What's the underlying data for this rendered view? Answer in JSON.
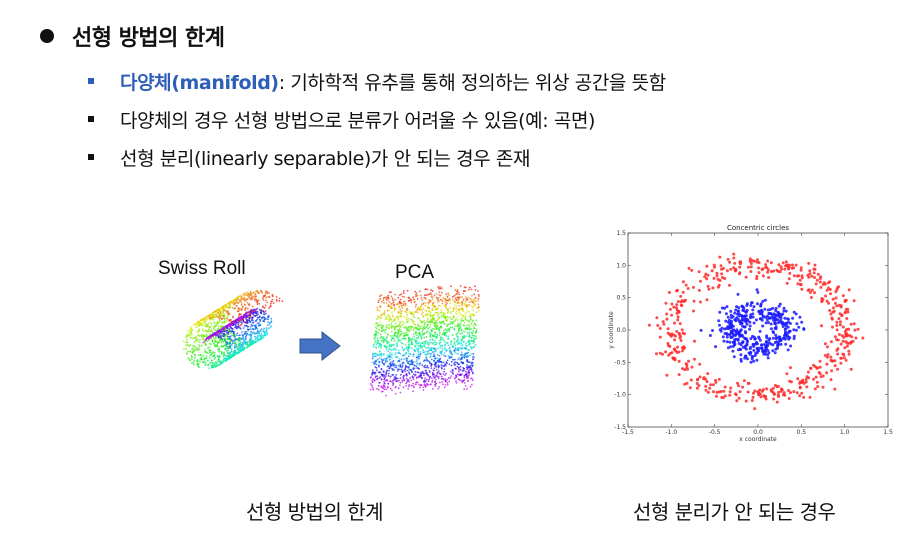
{
  "heading": "선형 방법의 한계",
  "bullets": [
    {
      "term": "다양체(manifold)",
      "text": ": 기하학적 유추를 통해 정의하는 위상 공간을 뜻함"
    },
    {
      "text": "다양체의 경우 선형 방법으로 분류가 어려울 수 있음(예: 곡면)"
    },
    {
      "text": "선형 분리(linearly separable)가 안 되는 경우 존재"
    }
  ],
  "left_figure": {
    "swiss_roll_label": "Swiss Roll",
    "pca_label": "PCA",
    "caption": "선형 방법의 한계"
  },
  "right_figure": {
    "caption": "선형 분리가 안 되는 경우"
  },
  "chart_data": {
    "type": "scatter",
    "title": "Concentric circles",
    "xlabel": "x coordinate",
    "ylabel": "y coordinate",
    "xlim": [
      -1.5,
      1.5
    ],
    "ylim": [
      -1.5,
      1.5
    ],
    "xticks": [
      "-1.5",
      "-1.0",
      "-0.5",
      "0.0",
      "0.5",
      "1.0",
      "1.5"
    ],
    "yticks": [
      "1.5",
      "1.0",
      "0.5",
      "0.0",
      "-0.5",
      "-1.0",
      "-1.5"
    ],
    "series": [
      {
        "color": "#ff2a2a",
        "radius": 1.0,
        "noise": 0.1,
        "count": 500
      },
      {
        "color": "#1a1aff",
        "radius": 0.3,
        "noise": 0.1,
        "count": 400
      }
    ]
  },
  "colors": {
    "accent": "#2e5fb8",
    "arrow": "#4472c4"
  }
}
